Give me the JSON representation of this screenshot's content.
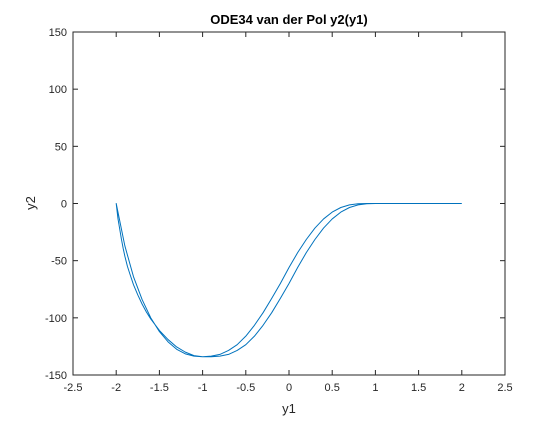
{
  "chart_data": {
    "type": "line",
    "title": "ODE34 van der Pol y2(y1)",
    "xlabel": "y1",
    "ylabel": "y2",
    "xlim": [
      -2.5,
      2.5
    ],
    "ylim": [
      -150,
      150
    ],
    "xticks": [
      -2.5,
      -2,
      -1.5,
      -1,
      -0.5,
      0,
      0.5,
      1,
      1.5,
      2,
      2.5
    ],
    "yticks": [
      -150,
      -100,
      -50,
      0,
      50,
      100,
      150
    ],
    "xtick_labels": [
      "-2.5",
      "-2",
      "-1.5",
      "-1",
      "-0.5",
      "0",
      "0.5",
      "1",
      "1.5",
      "2",
      "2.5"
    ],
    "ytick_labels": [
      "-150",
      "-100",
      "-50",
      "0",
      "50",
      "100",
      "150"
    ],
    "grid": false,
    "box": true,
    "series": [
      {
        "color": "#0072bd",
        "x": [
          2.0,
          1.98,
          1.96,
          1.94,
          1.92,
          1.9,
          1.87,
          1.84,
          1.8,
          1.75,
          1.7,
          1.65,
          1.6,
          1.5,
          1.4,
          1.3,
          1.2,
          1.1,
          1.0,
          0.9,
          0.8,
          0.7,
          0.6,
          0.5,
          0.4,
          0.3,
          0.2,
          0.1,
          0.0,
          -0.1,
          -0.2,
          -0.3,
          -0.4,
          -0.5,
          -0.6,
          -0.7,
          -0.8,
          -0.9,
          -1.0,
          -1.1,
          -1.2,
          -1.3,
          -1.4,
          -1.5,
          -1.6,
          -1.7,
          -1.8,
          -1.9,
          -2.0,
          -1.98,
          -1.96,
          -1.94,
          -1.92,
          -1.9,
          -1.87,
          -1.84,
          -1.8,
          -1.75,
          -1.7,
          -1.65,
          -1.6,
          -1.5,
          -1.4,
          -1.3,
          -1.2,
          -1.1,
          -1.0,
          -0.9,
          -0.8,
          -0.7,
          -0.6,
          -0.5,
          -0.4,
          -0.3,
          -0.2,
          -0.1,
          0.0,
          0.1,
          0.2,
          0.3,
          0.4,
          0.5,
          0.6,
          0.7,
          0.8,
          0.9,
          1.0,
          1.1,
          1.2,
          1.3,
          1.4,
          1.5,
          1.6,
          1.7,
          1.8,
          1.9,
          2.0
        ],
        "y": [
          0,
          0,
          0,
          0,
          0,
          0,
          0,
          0,
          0,
          0,
          0,
          0,
          0,
          0,
          0,
          0,
          0,
          0,
          0,
          -0.2,
          -1.2,
          -3.5,
          -7.5,
          -13.5,
          -21.5,
          -31.5,
          -43,
          -56,
          -70,
          -83,
          -95.5,
          -106.5,
          -116,
          -123.5,
          -128.5,
          -132,
          -133.5,
          -134,
          -134,
          -133.5,
          -131.5,
          -127.5,
          -121,
          -112,
          -100,
          -84,
          -64,
          -37,
          0,
          -13,
          -22,
          -31,
          -39,
          -46,
          -55,
          -62,
          -71,
          -80,
          -88,
          -95,
          -101,
          -111,
          -119,
          -125.5,
          -130,
          -133,
          -134,
          -133.5,
          -132,
          -128.5,
          -123.5,
          -116,
          -106.5,
          -95.5,
          -83,
          -70,
          -56,
          -43,
          -31.5,
          -21.5,
          -13.5,
          -7.5,
          -3.5,
          -1.2,
          -0.2,
          0,
          0,
          0,
          0,
          0,
          0,
          0,
          0,
          0,
          0,
          0,
          0
        ]
      }
    ]
  }
}
